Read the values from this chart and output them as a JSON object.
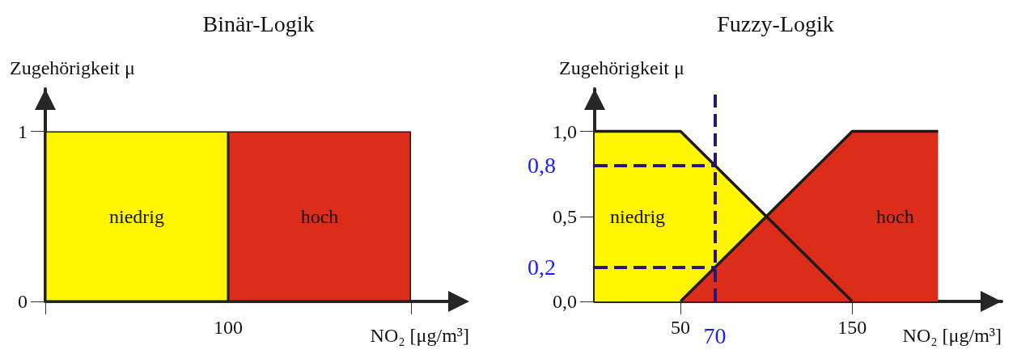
{
  "chart_data": [
    {
      "type": "bar",
      "title": "Binär-Logik",
      "xlabel": "NO₂ [μg/m³]",
      "ylabel": "Zugehörigkeit μ",
      "categories": [
        null,
        null
      ],
      "stacked": true,
      "ylim": [
        0,
        1.25
      ],
      "yticks": [
        0,
        1
      ],
      "series": [
        {
          "name": "niedrig",
          "color": "#fff500",
          "values": [
            1,
            null
          ]
        },
        {
          "name": "hoch",
          "color": "#dc2d1b",
          "values": [
            null,
            1
          ]
        }
      ],
      "annotations": [
        "100"
      ]
    },
    {
      "type": "area",
      "title": "Fuzzy-Logik",
      "xlabel": "NO₂ [μg/m³]",
      "ylabel": "Zugehörigkeit μ",
      "xlim": [
        0,
        237
      ],
      "xticks": [
        50,
        150
      ],
      "ylim": [
        0,
        1.25
      ],
      "yticks": [
        {
          "value": 0,
          "label": "0,0"
        },
        {
          "value": 0.5,
          "label": "0,5"
        },
        {
          "value": 1,
          "label": "1,0"
        }
      ],
      "series": [
        {
          "name": "niedrig",
          "color": "#fff500",
          "x": [
            0,
            50,
            150
          ],
          "values": [
            1,
            1,
            0
          ]
        },
        {
          "name": "hoch",
          "color": "#dc2d1b",
          "x": [
            50,
            150,
            200
          ],
          "values": [
            0,
            1,
            1
          ]
        }
      ],
      "ref_lines": [
        {
          "axis": "x",
          "value": 70,
          "label": "70",
          "color": "#2b1677",
          "line_style": "dashed"
        },
        {
          "axis": "y",
          "value": 0.8,
          "label": "0,8",
          "color": "#2b1677",
          "line_style": "dashed"
        },
        {
          "axis": "y",
          "value": 0.2,
          "label": "0,2",
          "color": "#2b1677",
          "line_style": "dashed"
        }
      ]
    }
  ]
}
